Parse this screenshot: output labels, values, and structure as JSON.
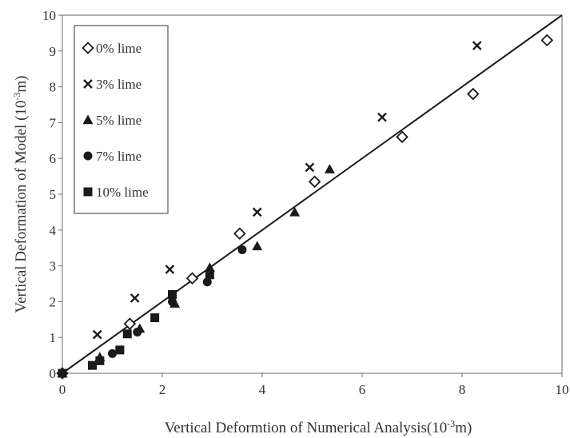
{
  "chart_data": {
    "type": "scatter",
    "xlabel_main": "Vertical Deformtion of Numerical Analysis(10",
    "xlabel_sup": "-3",
    "xlabel_tail": "m)",
    "ylabel_main": "Vertical Deformation of  Model (10",
    "ylabel_sup": "-3",
    "ylabel_tail": "m)",
    "xlim": [
      0,
      10
    ],
    "ylim": [
      0,
      10
    ],
    "x_ticks": [
      0,
      2,
      4,
      6,
      8,
      10
    ],
    "y_ticks": [
      0,
      1,
      2,
      3,
      4,
      5,
      6,
      7,
      8,
      9,
      10
    ],
    "grid": false,
    "legend_position": "top-left",
    "reference_line": {
      "from": [
        0,
        0
      ],
      "to": [
        10,
        10
      ]
    },
    "series": [
      {
        "name": "0% lime",
        "marker": "diamond",
        "points": [
          [
            0,
            0
          ],
          [
            1.35,
            1.38
          ],
          [
            2.6,
            2.65
          ],
          [
            3.55,
            3.9
          ],
          [
            5.05,
            5.35
          ],
          [
            6.8,
            6.6
          ],
          [
            8.22,
            7.8
          ],
          [
            9.7,
            9.3
          ]
        ]
      },
      {
        "name": "3% lime",
        "marker": "cross",
        "points": [
          [
            0.7,
            1.08
          ],
          [
            1.45,
            2.1
          ],
          [
            2.15,
            2.9
          ],
          [
            3.9,
            4.5
          ],
          [
            4.95,
            5.75
          ],
          [
            6.4,
            7.15
          ],
          [
            8.3,
            9.15
          ]
        ]
      },
      {
        "name": "5% lime",
        "marker": "triangle",
        "points": [
          [
            0,
            0
          ],
          [
            0.75,
            0.45
          ],
          [
            1.55,
            1.25
          ],
          [
            2.25,
            1.95
          ],
          [
            2.95,
            2.95
          ],
          [
            3.9,
            3.55
          ],
          [
            4.65,
            4.5
          ],
          [
            5.35,
            5.7
          ]
        ]
      },
      {
        "name": "7% lime",
        "marker": "circle",
        "points": [
          [
            0,
            0
          ],
          [
            1.0,
            0.55
          ],
          [
            1.5,
            1.15
          ],
          [
            2.2,
            2.0
          ],
          [
            2.9,
            2.55
          ],
          [
            3.6,
            3.45
          ]
        ]
      },
      {
        "name": "10% lime",
        "marker": "square",
        "points": [
          [
            0,
            0
          ],
          [
            0.6,
            0.22
          ],
          [
            0.75,
            0.35
          ],
          [
            1.15,
            0.65
          ],
          [
            1.3,
            1.1
          ],
          [
            1.85,
            1.55
          ],
          [
            2.2,
            2.2
          ],
          [
            2.95,
            2.75
          ]
        ]
      }
    ]
  }
}
